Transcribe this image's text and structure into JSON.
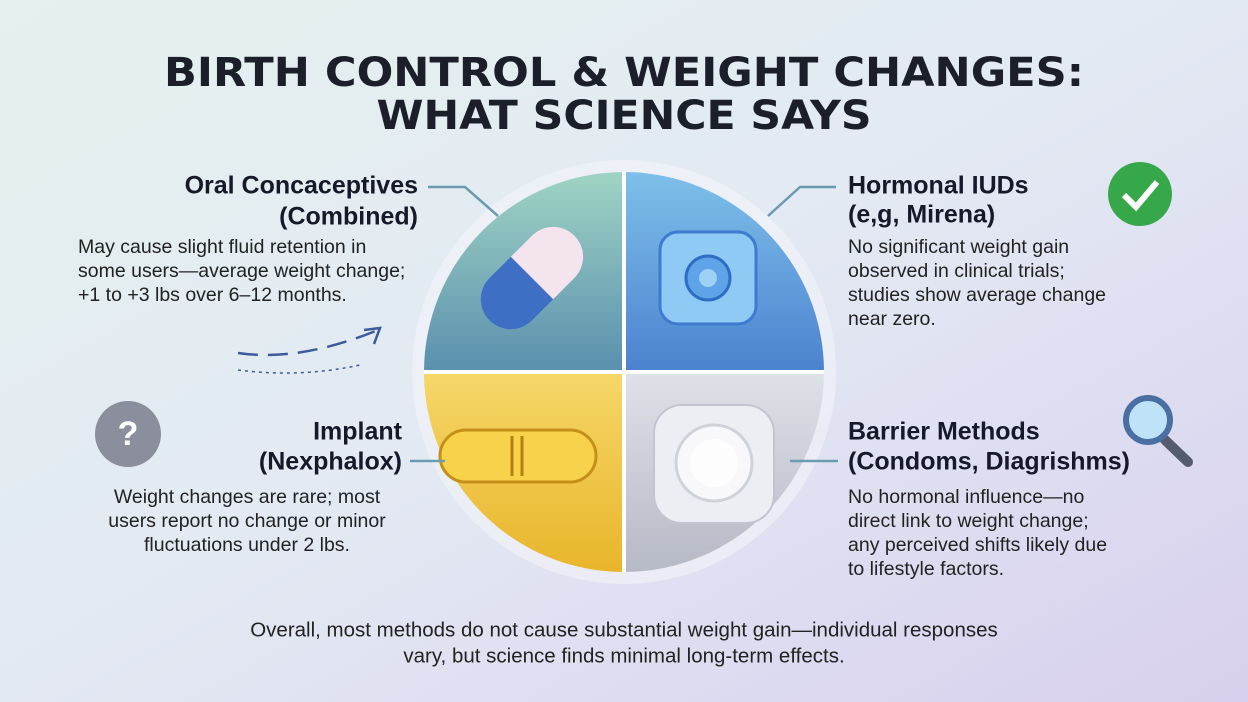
{
  "header": {
    "title_lines": [
      "BIRTH CONTROL & WEIGHT CHANGES:",
      "WHAT SCIENCE SAYS"
    ]
  },
  "sections": [
    {
      "title_lines": [
        "Oral Concaceptives",
        "(Combined)"
      ],
      "body_lines": [
        "May cause slight fluid retention in",
        "some users—average weight change;",
        "+1 to +3 lbs over 6–12 months."
      ]
    },
    {
      "title_lines": [
        "Hormonal IUDs",
        "(e,g, Mirena)"
      ],
      "body_lines": [
        "No significant weight gain",
        "observed in clinical trials;",
        "studies show average change",
        "near zero."
      ]
    },
    {
      "title_lines": [
        "Implant",
        "(Nexphalox)"
      ],
      "body_lines": [
        "Weight changes are rare; most",
        "users report no change or minor",
        "fluctuations under 2 lbs."
      ]
    },
    {
      "title_lines": [
        "Barrier Methods",
        "(Condoms, Diagrishms)"
      ],
      "body_lines": [
        "No hormonal influence—no",
        "direct link  to weight change;",
        "any perceived shifts likely due",
        "to lifestyle factors."
      ]
    }
  ],
  "footer": {
    "lines": [
      "Overall, most methods do not cause substantial weight gain—individual responses",
      "vary, but science finds minimal long-term effects."
    ]
  }
}
